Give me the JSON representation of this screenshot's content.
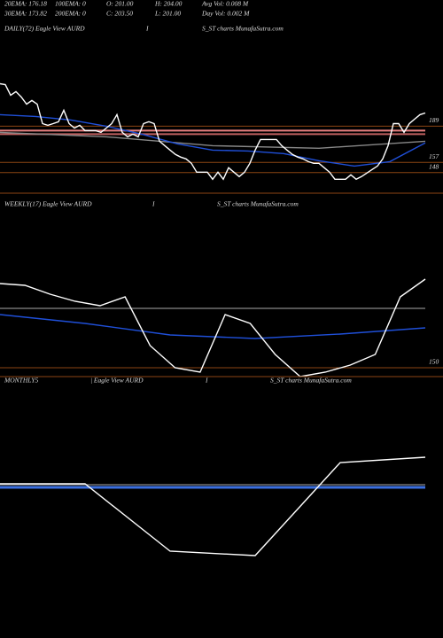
{
  "header": {
    "stats": [
      [
        "20EMA: 176.18",
        "100EMA: 0",
        "O: 201.00",
        "H: 204.00",
        "Avg Vol: 0.008  M"
      ],
      [
        "30EMA: 173.82",
        "200EMA: 0",
        "C: 203.50",
        "L: 201.00",
        "Day Vol: 0.002  M"
      ]
    ]
  },
  "chart_data": [
    {
      "type": "line",
      "title_parts": [
        "DAILY(72) Eagle  View  AURD",
        "I",
        "S_ST charts MunafaSutra.com"
      ],
      "ylim": [
        140,
        277
      ],
      "yticks": [
        189,
        157,
        148
      ],
      "tick_color": "#8b4513",
      "hlines": [
        {
          "value": 185.1,
          "color": "#e88080"
        },
        {
          "value": 182,
          "color": "#c06060"
        }
      ],
      "series": [
        {
          "color": "#888888",
          "values": [
            183.5,
            179.6,
            171.8,
            169.5,
            175.7
          ]
        },
        {
          "color": "#1f4fd8",
          "values": [
            199.2,
            197.6,
            194.5,
            189,
            182,
            173.4,
            167.9,
            167.1,
            164.8,
            158.5,
            153.8,
            157.7,
            174.2
          ]
        },
        {
          "color": "#ffffff",
          "values": [
            226.5,
            225.7,
            216.3,
            219.5,
            214.8,
            208.5,
            211.7,
            208.5,
            191.3,
            189.8,
            191.3,
            192.9,
            203.1,
            191.3,
            187.4,
            189.8,
            185.1,
            185.1,
            185.1,
            183.5,
            187.4,
            191.3,
            199.2,
            183.5,
            179.6,
            182,
            179.6,
            191.3,
            192.9,
            191.3,
            175.7,
            171.8,
            167.9,
            164,
            161.7,
            160.1,
            156.2,
            148.4,
            148.4,
            148.4,
            142.1,
            148.4,
            142.1,
            152.3,
            148.4,
            144.5,
            148.4,
            156.2,
            167.9,
            177.3,
            177.3,
            177.3,
            177.3,
            171.8,
            167.9,
            164,
            161.7,
            160.1,
            157.7,
            156.2,
            156.2,
            152.3,
            148.4,
            142.1,
            142.1,
            142.1,
            146,
            142.1,
            144.5,
            147.6,
            150.7,
            153.8,
            160.1,
            171.8,
            191.3,
            191.3,
            183.5,
            191.3,
            195.3,
            199.2,
            200.7
          ]
        }
      ]
    },
    {
      "type": "line",
      "title_parts": [
        "WEEKLY(17) Eagle  View  AURD",
        "I",
        "S_ST charts MunafaSutra.com"
      ],
      "ylim": [
        140,
        340
      ],
      "yticks": [
        150
      ],
      "tick_color": "#8b4513",
      "hlines": [
        {
          "value": 217,
          "color": "#888888"
        }
      ],
      "series": [
        {
          "color": "#1f4fd8",
          "values": [
            210,
            200,
            187,
            183,
            188,
            195
          ]
        },
        {
          "color": "#ffffff",
          "values": [
            245,
            243,
            233,
            225,
            220,
            230,
            175,
            150,
            145,
            210,
            200,
            165,
            140,
            145,
            153,
            165,
            230,
            250
          ]
        }
      ]
    },
    {
      "type": "line",
      "title_parts": [
        "MONTHLY5",
        "| Eagle  View  AURD",
        "I",
        "S_ST charts MunafaSutra.com"
      ],
      "ylim": [
        100,
        380
      ],
      "yticks": [],
      "tick_color": "#8b4513",
      "hlines": [
        {
          "value": 273,
          "color": "#888888"
        }
      ],
      "series": [
        {
          "color": "#3b6fe0",
          "values": [
            270,
            270
          ]
        },
        {
          "color": "#ffffff",
          "values": [
            274,
            274,
            198,
            193,
            298,
            304
          ]
        }
      ]
    }
  ]
}
